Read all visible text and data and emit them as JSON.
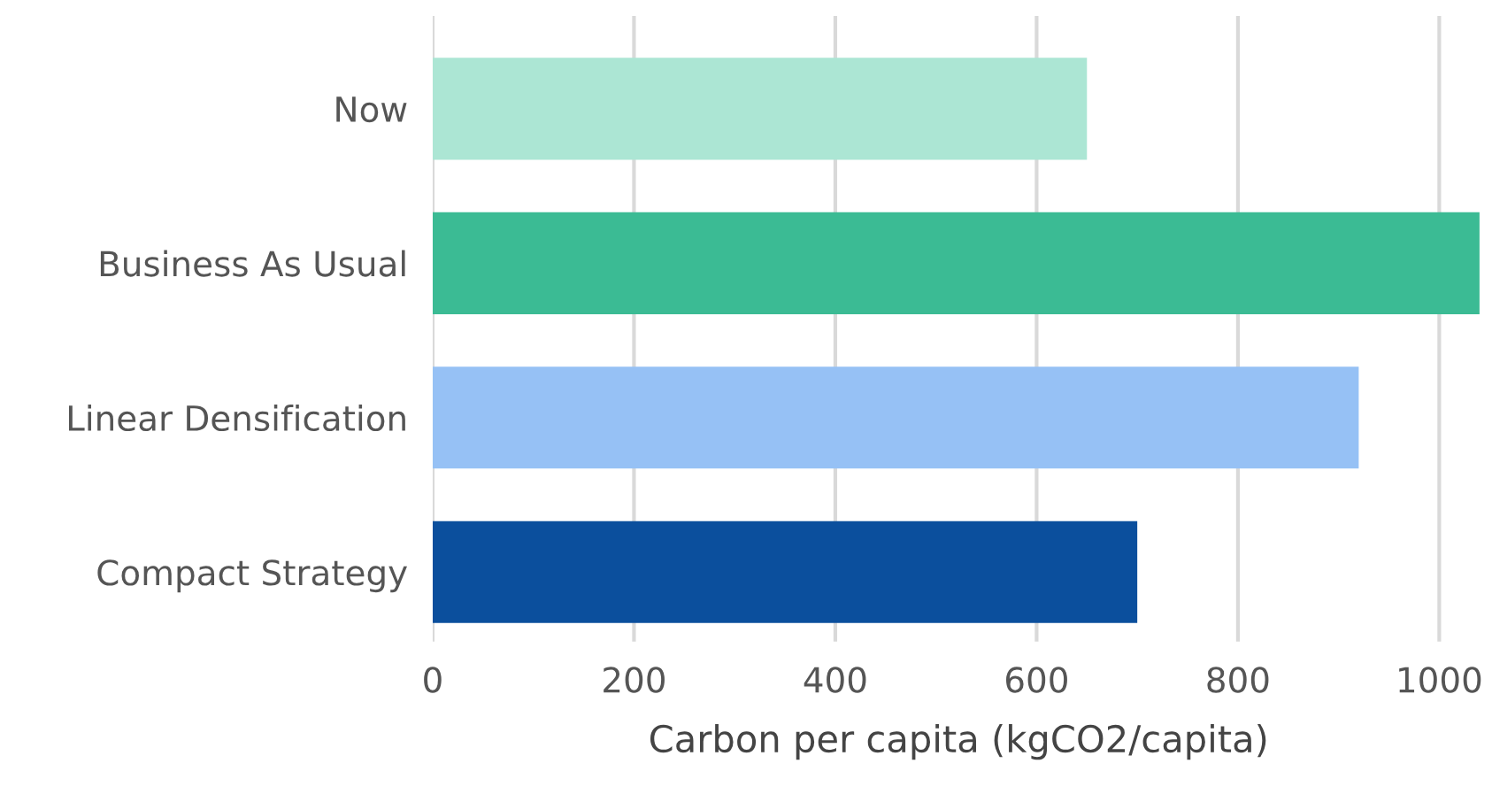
{
  "chart_data": {
    "type": "bar",
    "orientation": "horizontal",
    "xlabel": "Carbon per capita (kgCO2/capita)",
    "categories": [
      "Now",
      "Business As Usual",
      "Linear Densification",
      "Compact Strategy"
    ],
    "values": [
      650,
      1040,
      920,
      700
    ],
    "colors": [
      "#ace6d4",
      "#3bbb94",
      "#96c1f5",
      "#0b4f9d"
    ],
    "xlim": [
      0,
      1045
    ],
    "xticks": [
      0,
      200,
      400,
      600,
      800,
      1000
    ],
    "grid": "x"
  }
}
